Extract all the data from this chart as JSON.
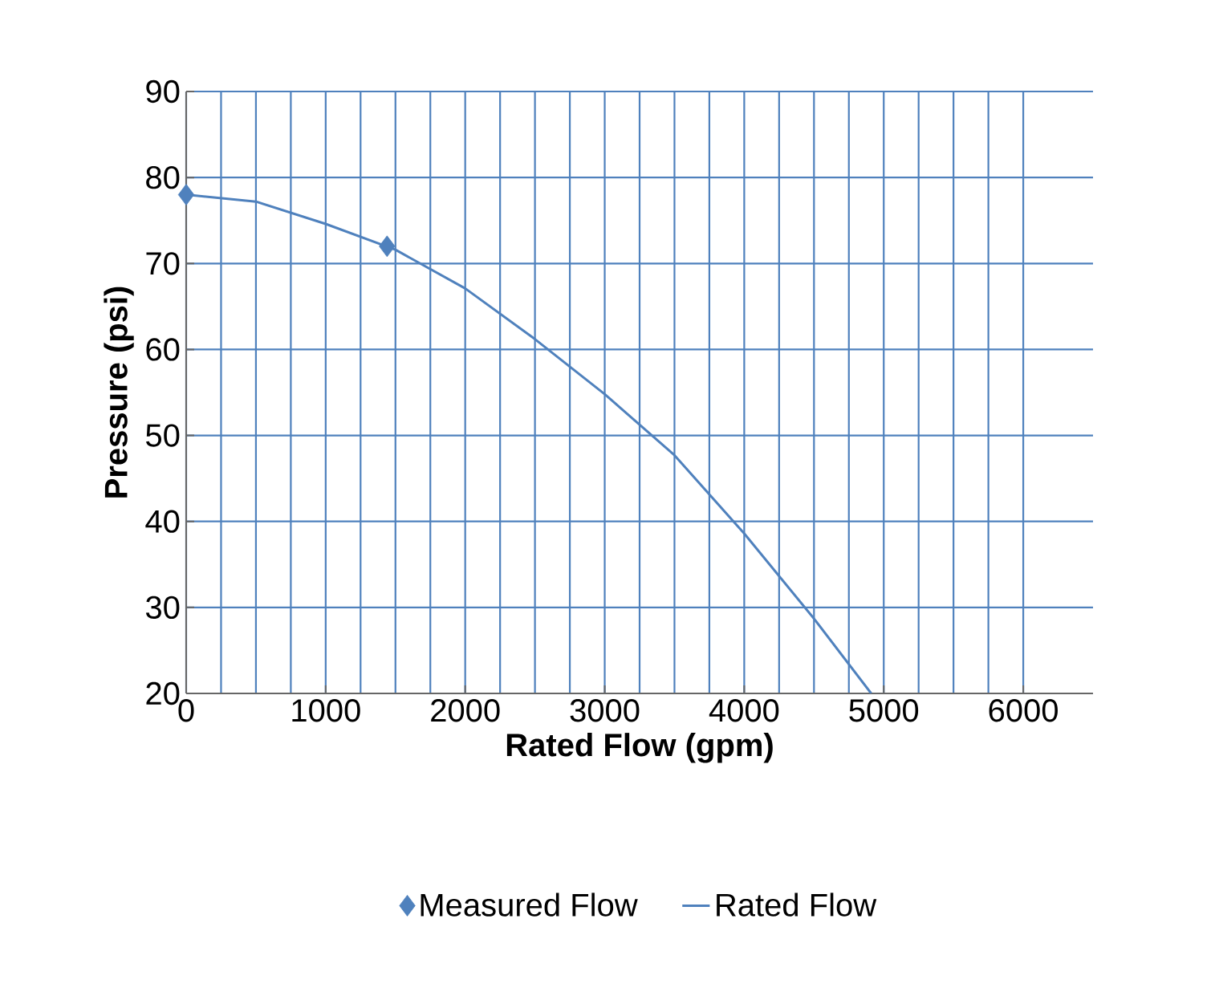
{
  "chart_data": {
    "type": "line",
    "xlabel": "Rated Flow (gpm)",
    "ylabel": "Pressure (psi)",
    "xlim": [
      0,
      6500
    ],
    "ylim": [
      20,
      90
    ],
    "xticks": [
      0,
      1000,
      2000,
      3000,
      4000,
      5000,
      6000
    ],
    "yticks": [
      20,
      30,
      40,
      50,
      60,
      70,
      80,
      90
    ],
    "grid": true,
    "legend": "bottom",
    "series": [
      {
        "name": "Measured Flow",
        "type": "scatter",
        "marker": "diamond",
        "color": "#4f81bd",
        "x": [
          0,
          1440
        ],
        "values": [
          78,
          72
        ]
      },
      {
        "name": "Rated Flow",
        "type": "line",
        "marker": "none",
        "color": "#4f81bd",
        "x": [
          0,
          500,
          1000,
          1500,
          2000,
          2500,
          3000,
          3500,
          4000,
          4500,
          4910
        ],
        "values": [
          78,
          77.2,
          74.6,
          71.6,
          67.1,
          61.2,
          54.8,
          47.7,
          38.6,
          28.7,
          20
        ]
      }
    ]
  }
}
